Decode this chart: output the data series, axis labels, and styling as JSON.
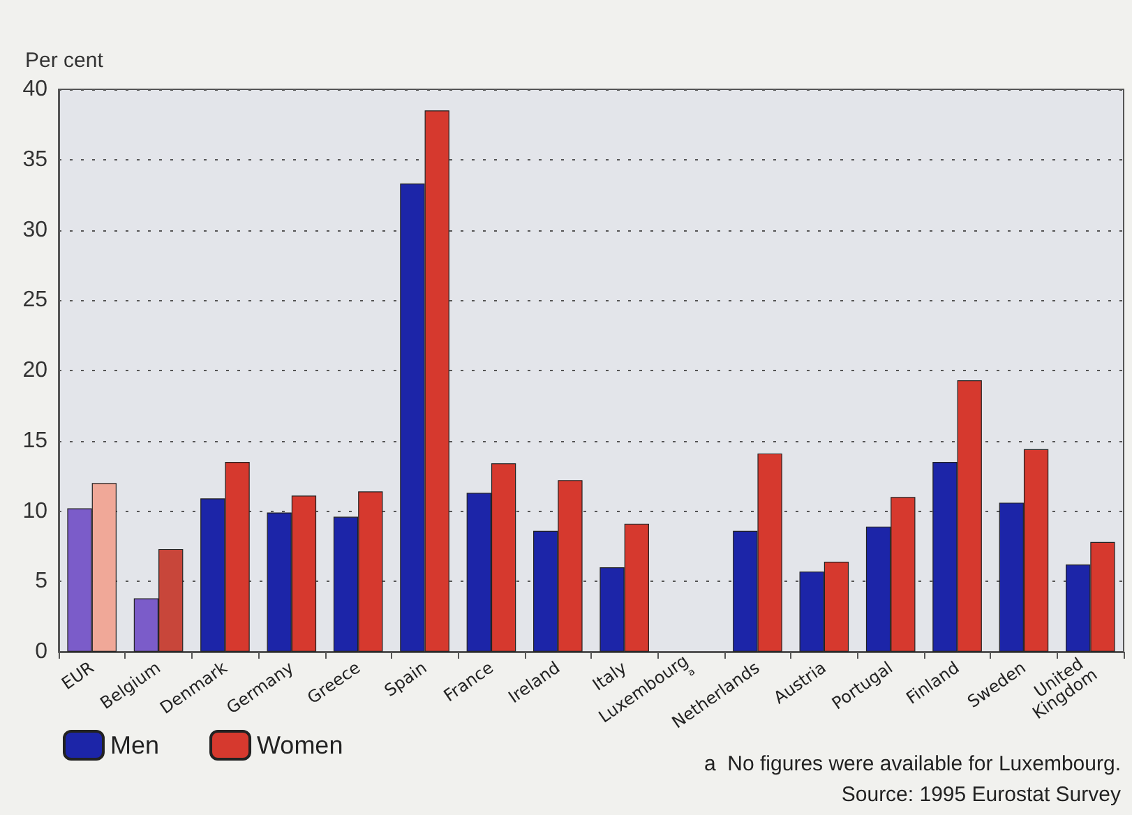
{
  "chart_data": {
    "type": "bar",
    "ylabel": "Per cent",
    "categories": [
      "EUR",
      "Belgium",
      "Denmark",
      "Germany",
      "Greece",
      "Spain",
      "France",
      "Ireland",
      "Italy",
      "Luxembourgᵃ",
      "Netherlands",
      "Austria",
      "Portugal",
      "Finland",
      "Sweden",
      "United Kingdom"
    ],
    "series": [
      {
        "name": "Men",
        "color": "#1c25a8",
        "colors": [
          "#7b5cc9",
          "#7b5cc9",
          "#1c25a8",
          "#1c25a8",
          "#1c25a8",
          "#1c25a8",
          "#1c25a8",
          "#1c25a8",
          "#1c25a8",
          "#1c25a8",
          "#1c25a8",
          "#1c25a8",
          "#1c25a8",
          "#1c25a8",
          "#1c25a8",
          "#1c25a8"
        ],
        "values": [
          10.2,
          3.8,
          10.9,
          9.9,
          9.6,
          33.3,
          11.3,
          8.6,
          6.0,
          null,
          8.6,
          5.7,
          8.9,
          13.5,
          10.6,
          6.2
        ]
      },
      {
        "name": "Women",
        "color": "#d6392e",
        "colors": [
          "#f0a898",
          "#c8463a",
          "#d6392e",
          "#d6392e",
          "#d6392e",
          "#d6392e",
          "#d6392e",
          "#d6392e",
          "#d6392e",
          "#d6392e",
          "#d6392e",
          "#d6392e",
          "#d6392e",
          "#d6392e",
          "#d6392e",
          "#d6392e"
        ],
        "values": [
          12.0,
          7.3,
          13.5,
          11.1,
          11.4,
          38.5,
          13.4,
          12.2,
          9.1,
          null,
          14.1,
          6.4,
          11.0,
          19.3,
          14.4,
          7.8
        ]
      }
    ],
    "ylim": [
      0,
      40
    ],
    "yticks": [
      0,
      5,
      10,
      15,
      20,
      25,
      30,
      35,
      40
    ],
    "grid": "y",
    "legend": "bottom left",
    "annotations": [
      "a  No figures were available for Luxembourg.",
      "Source: 1995 Eurostat Survey"
    ]
  }
}
